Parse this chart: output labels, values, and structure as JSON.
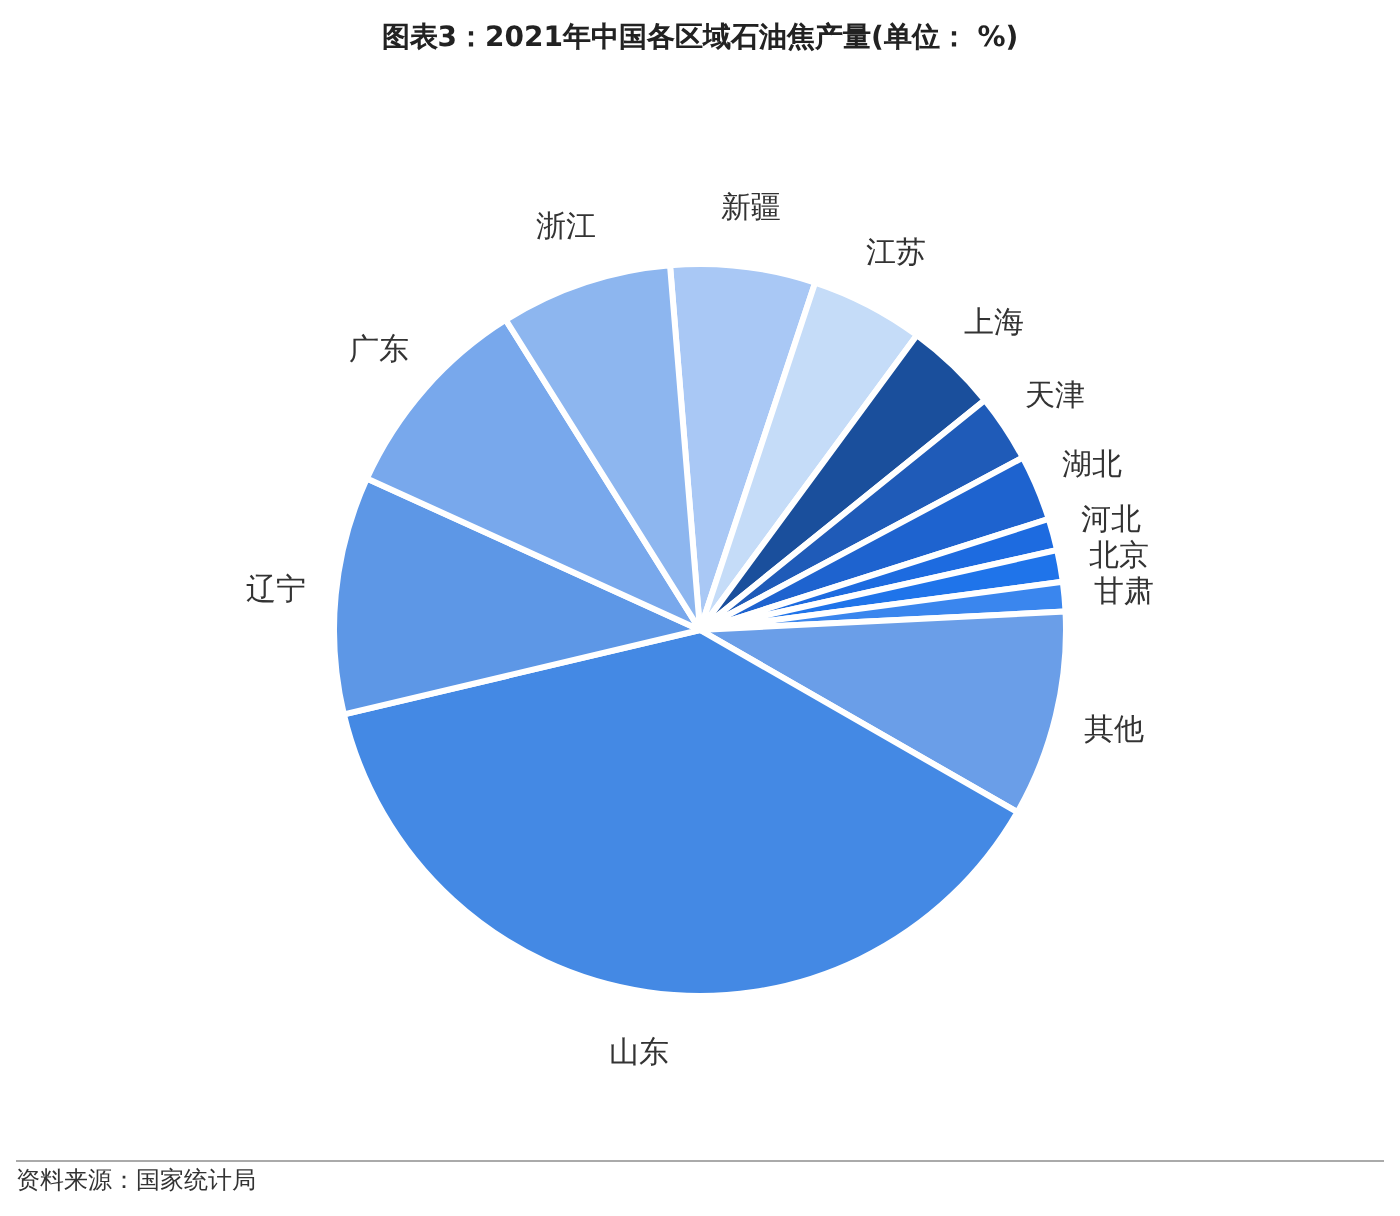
{
  "chart_data": {
    "type": "pie",
    "title": "图表3：2021年中国各区域石油焦产量(单位： %)",
    "categories": [
      "新疆",
      "江苏",
      "上海",
      "天津",
      "湖北",
      "河北",
      "北京",
      "甘肃",
      "其他",
      "山东",
      "辽宁",
      "广东",
      "浙江"
    ],
    "values": [
      6.4,
      5.0,
      4.1,
      3.0,
      2.9,
      1.4,
      1.4,
      1.3,
      9.1,
      38.0,
      10.5,
      9.3,
      7.6
    ],
    "colors": [
      "#a9c8f5",
      "#c5dcf8",
      "#1a4f9c",
      "#1f5bb8",
      "#1e63cf",
      "#1d6be0",
      "#1f74ea",
      "#3a86ee",
      "#6a9ee8",
      "#4489e4",
      "#5d97e6",
      "#78a8ec",
      "#8db6ef"
    ],
    "annotations": [
      "资料来源：国家统计局"
    ]
  }
}
